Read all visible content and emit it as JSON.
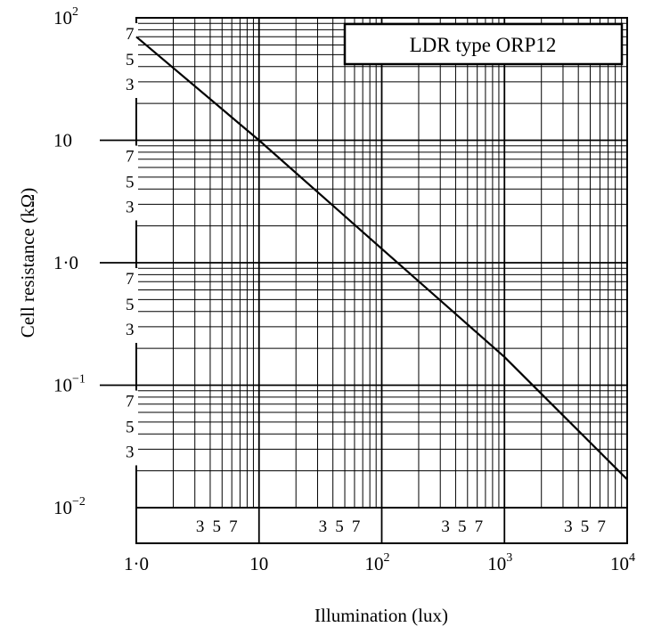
{
  "chart_data": {
    "type": "line",
    "title": "",
    "legend_box": "LDR type ORP12",
    "xlabel": "Illumination (lux)",
    "ylabel": "Cell resistance (kΩ)",
    "x_scale": "log",
    "y_scale": "log",
    "xlim": [
      1,
      10000
    ],
    "ylim": [
      0.01,
      100
    ],
    "grid": true,
    "x_ticks": [
      {
        "value": 1,
        "label": "1·0",
        "sup": ""
      },
      {
        "value": 10,
        "label": "10",
        "sup": ""
      },
      {
        "value": 100,
        "label": "10",
        "sup": "2"
      },
      {
        "value": 1000,
        "label": "10",
        "sup": "3"
      },
      {
        "value": 10000,
        "label": "10",
        "sup": "4"
      }
    ],
    "y_ticks": [
      {
        "value": 0.01,
        "label": "10",
        "sup": "−2"
      },
      {
        "value": 0.1,
        "label": "10",
        "sup": "−1"
      },
      {
        "value": 1,
        "label": "1·0",
        "sup": ""
      },
      {
        "value": 10,
        "label": "10",
        "sup": ""
      },
      {
        "value": 100,
        "label": "10",
        "sup": "2"
      }
    ],
    "minor_tick_labels": [
      "3",
      "5",
      "7"
    ],
    "series": [
      {
        "x": [
          1,
          10,
          100,
          1000,
          10000
        ],
        "y": [
          70,
          10,
          1.3,
          0.17,
          0.017
        ]
      }
    ]
  }
}
